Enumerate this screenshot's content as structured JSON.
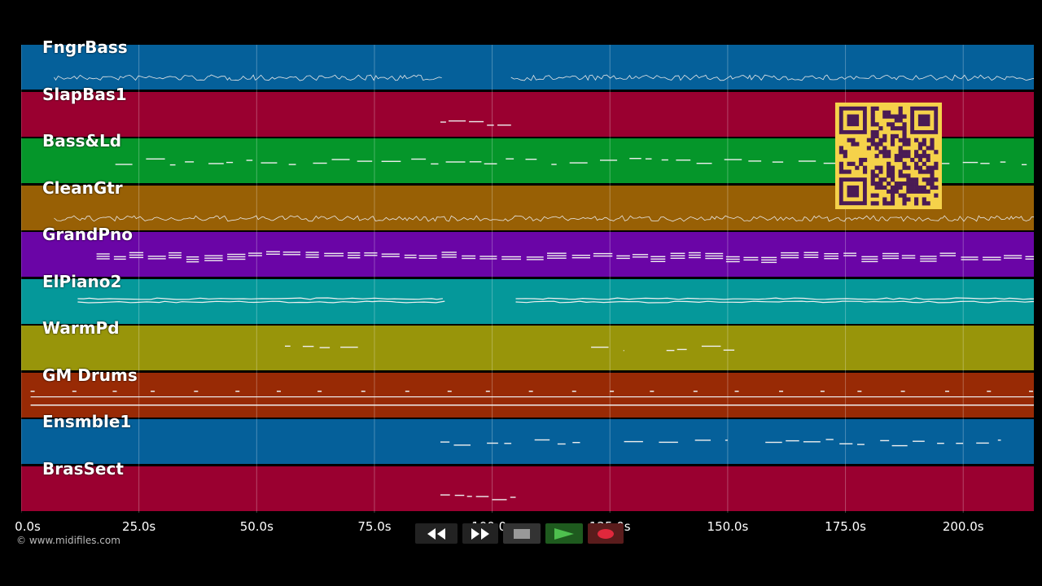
{
  "timeline": {
    "duration_s": 215,
    "ticks": [
      "0.0s",
      "25.0s",
      "50.0s",
      "75.0s",
      "100.0s",
      "125.0s",
      "150.0s",
      "175.0s",
      "200.0s"
    ],
    "tick_values": [
      0,
      25,
      50,
      75,
      100,
      125,
      150,
      175,
      200
    ]
  },
  "tracks": [
    {
      "name": "FngrBass",
      "color": "#05609a",
      "segments": [
        [
          7,
          89
        ],
        [
          104,
          215
        ]
      ],
      "style": "wiggle"
    },
    {
      "name": "SlapBas1",
      "color": "#9a0030",
      "segments": [
        [
          89,
          104
        ]
      ],
      "style": "dots"
    },
    {
      "name": "Bass&Ld",
      "color": "#05962a",
      "segments": [
        [
          20,
          215
        ]
      ],
      "style": "dashes"
    },
    {
      "name": "CleanGtr",
      "color": "#986005",
      "segments": [
        [
          7,
          215
        ]
      ],
      "style": "wiggle"
    },
    {
      "name": "GrandPno",
      "color": "#6a05a6",
      "segments": [
        [
          16,
          215
        ]
      ],
      "style": "chords"
    },
    {
      "name": "ElPiano2",
      "color": "#05989a",
      "segments": [
        [
          12,
          89
        ],
        [
          105,
          215
        ]
      ],
      "style": "lines"
    },
    {
      "name": "WarmPd",
      "color": "#98950a",
      "segments": [
        [
          56,
          72
        ],
        [
          121,
          128
        ],
        [
          137,
          152
        ]
      ],
      "style": "dashes"
    },
    {
      "name": "GM Drums",
      "color": "#982a05",
      "segments": [
        [
          2,
          215
        ]
      ],
      "style": "drums"
    },
    {
      "name": "Ensmble1",
      "color": "#05609a",
      "segments": [
        [
          89,
          105
        ],
        [
          109,
          120
        ],
        [
          128,
          150
        ],
        [
          158,
          208
        ]
      ],
      "style": "dashes"
    },
    {
      "name": "BrasSect",
      "color": "#9a0030",
      "segments": [
        [
          89,
          105
        ]
      ],
      "style": "dots"
    }
  ],
  "copyright": "© www.midifiles.com",
  "transport": {
    "rewind": "rewind-icon",
    "fast_forward": "fast-forward-icon",
    "stop": "stop-icon",
    "play": "play-icon",
    "record": "record-icon"
  },
  "qr_code": "qr-code"
}
